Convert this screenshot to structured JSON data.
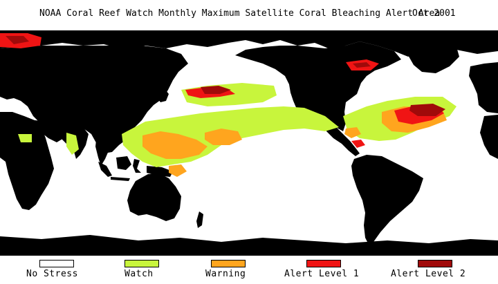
{
  "title": {
    "text": "NOAA Coral Reef Watch Monthly Maximum Satellite Coral Bleaching Alert Area",
    "date": "Oct 2001"
  },
  "map": {
    "land_color": "#000000",
    "ocean_color": "#ffffff",
    "projection": "equirectangular, Pacific-centered"
  },
  "legend": {
    "items": [
      {
        "label": "No Stress",
        "color": "#ffffff"
      },
      {
        "label": "Watch",
        "color": "#c8f53c"
      },
      {
        "label": "Warning",
        "color": "#ffa51e"
      },
      {
        "label": "Alert Level 1",
        "color": "#f01414"
      },
      {
        "label": "Alert Level 2",
        "color": "#a00a0a"
      }
    ]
  }
}
